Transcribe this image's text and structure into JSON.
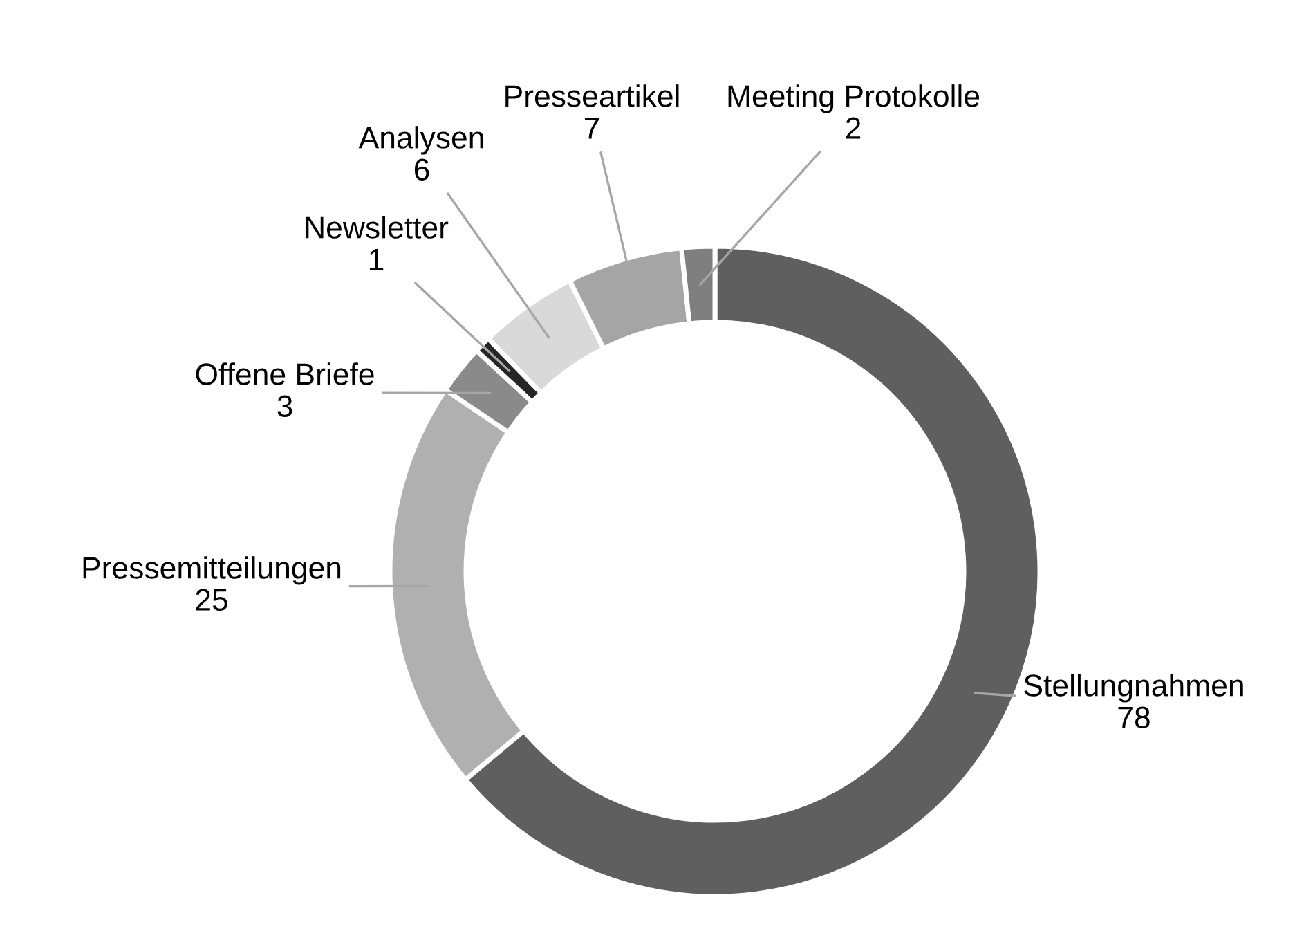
{
  "chart_data": {
    "type": "donut",
    "categories": [
      "Stellungnahmen",
      "Pressemitteilungen",
      "Offene Briefe",
      "Newsletter",
      "Analysen",
      "Presseartikel",
      "Meeting Protokolle"
    ],
    "values": [
      78,
      25,
      3,
      1,
      6,
      7,
      2
    ],
    "colors": [
      "#5f5f5f",
      "#b0b0b0",
      "#8a8a8a",
      "#262626",
      "#d9d9d9",
      "#a5a5a5",
      "#7f7f7f"
    ],
    "data_labels": true
  }
}
